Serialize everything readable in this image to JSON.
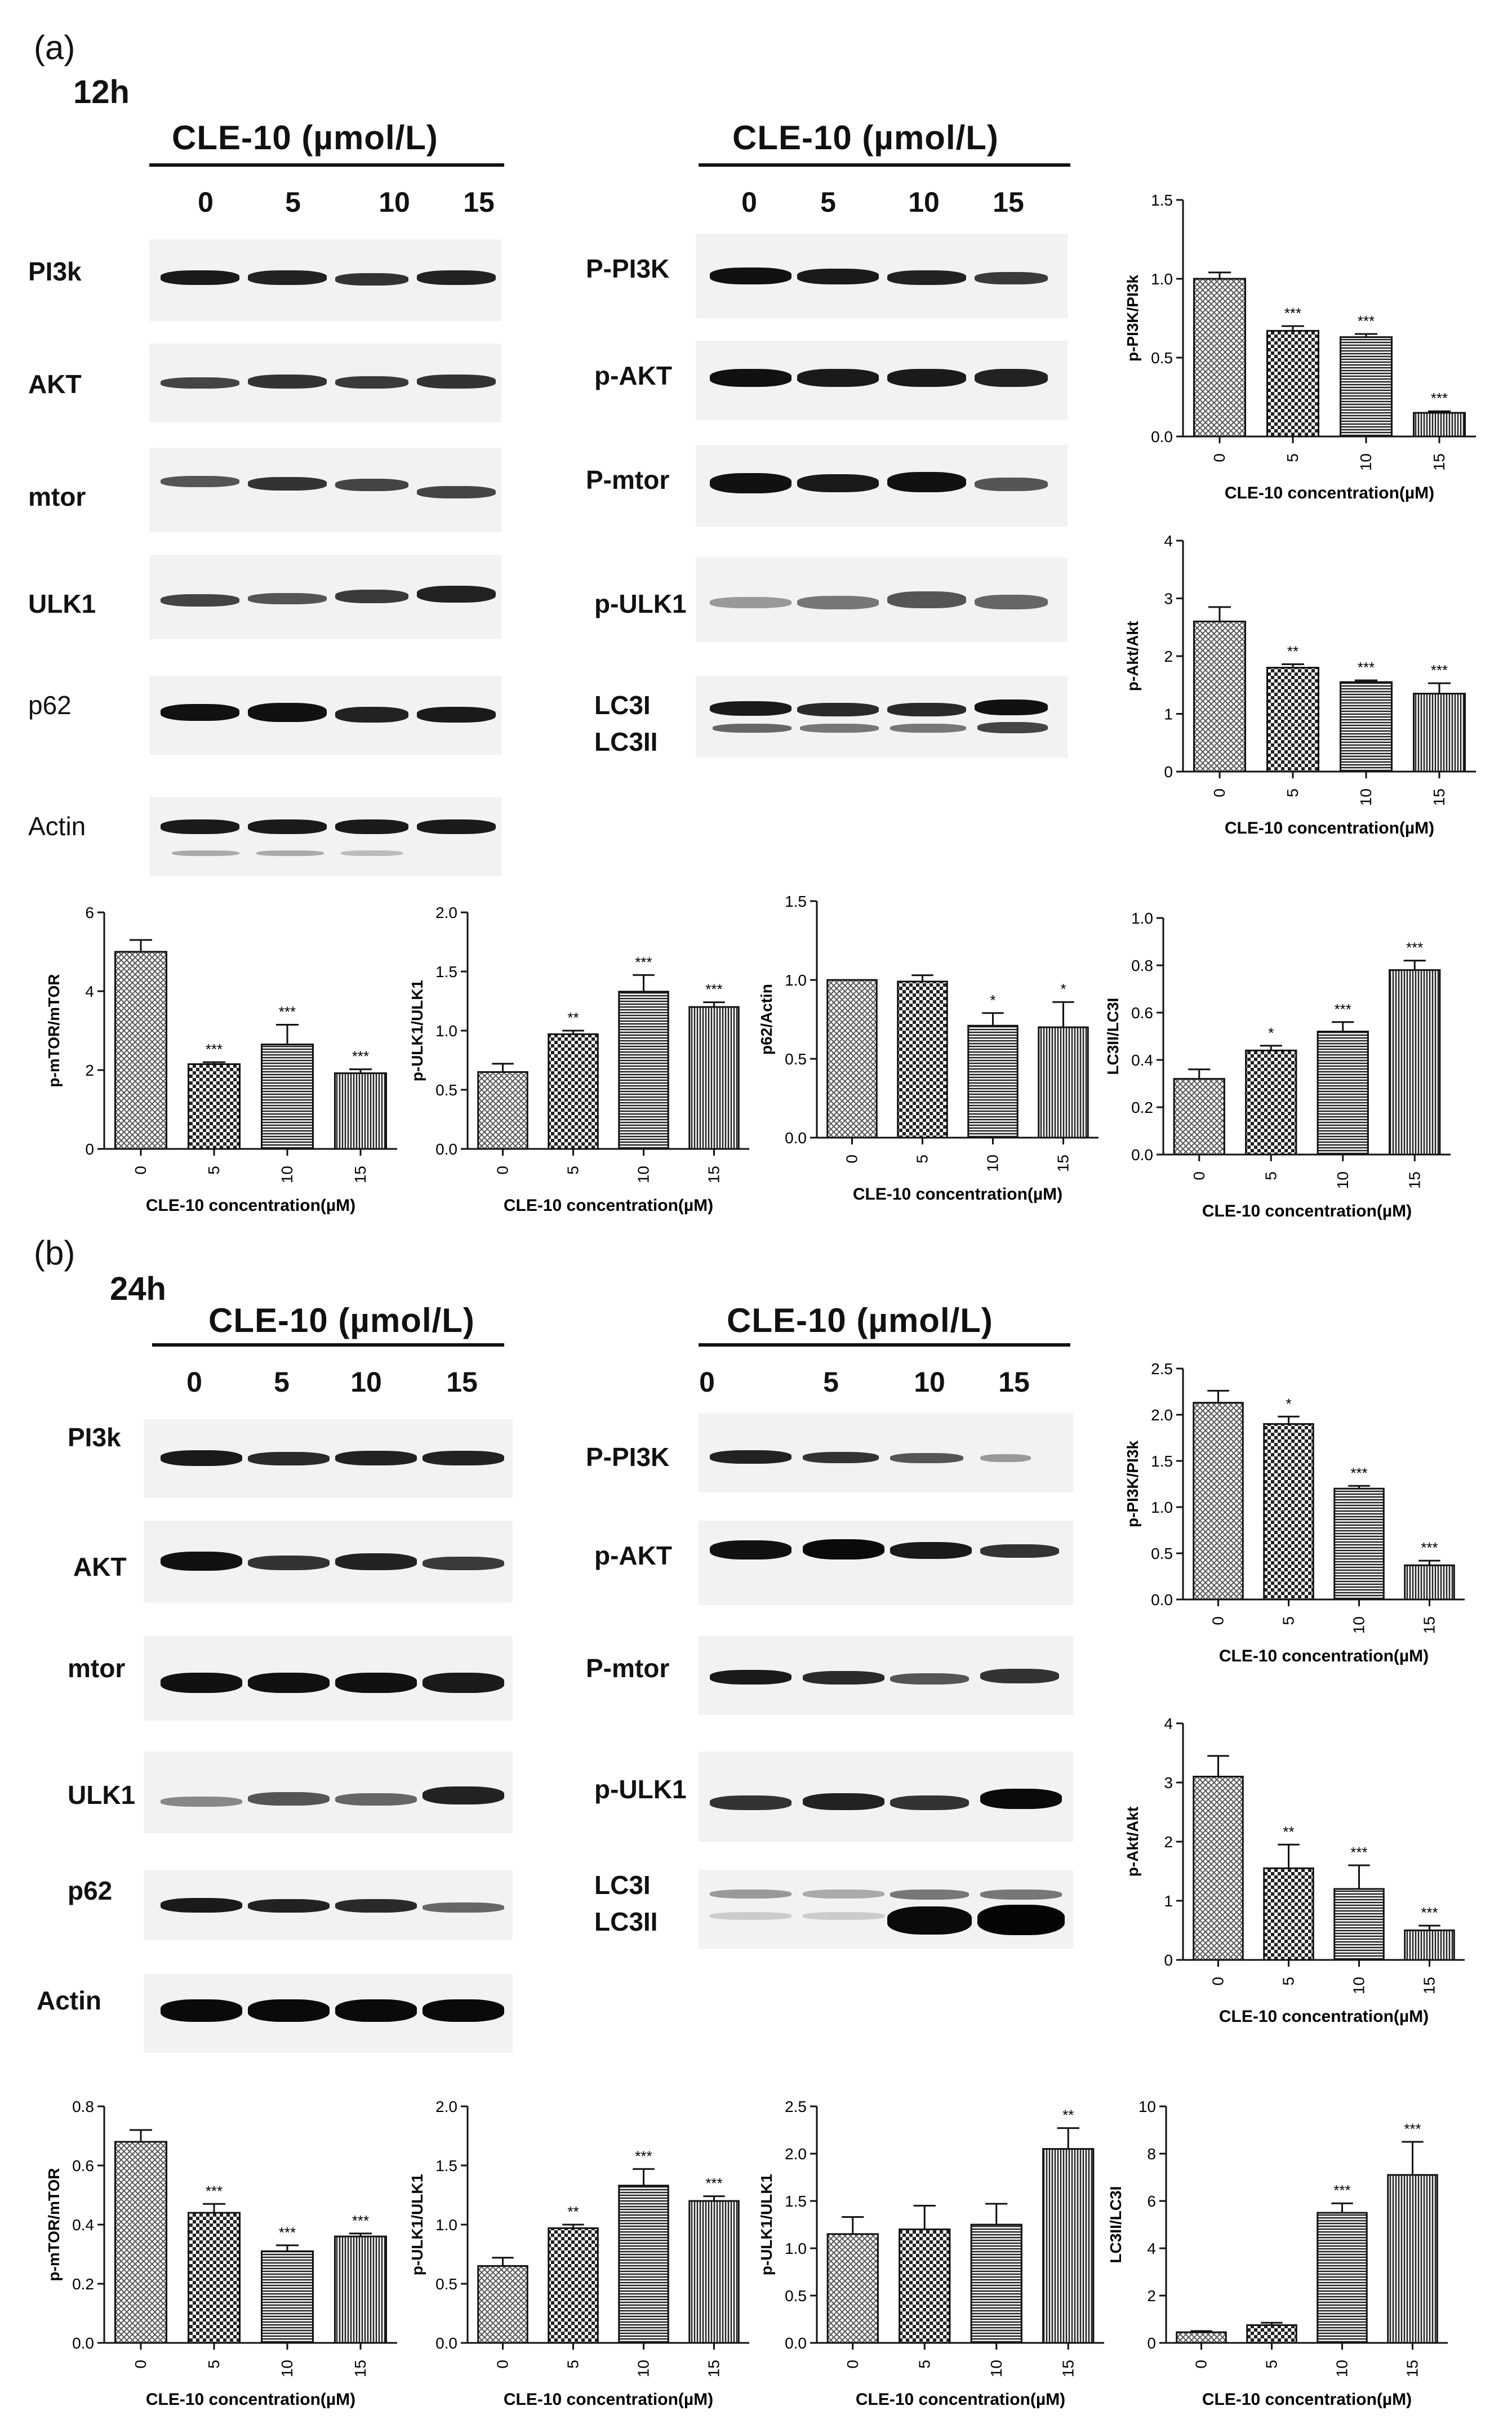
{
  "panels": [
    {
      "letter": "(a)",
      "time": "12h",
      "header": "CLE-10  (µmol/L)",
      "lanes_left": [
        "0",
        "5",
        "10",
        "15"
      ],
      "lanes_right": [
        "0",
        "5",
        "10",
        "15"
      ],
      "left_labels": [
        "PI3k",
        "AKT",
        "mtor",
        "ULK1",
        "p62",
        "Actin"
      ],
      "right_labels": [
        "P-PI3K",
        "p-AKT",
        "P-mtor",
        "p-ULK1",
        "LC3I",
        "LC3II"
      ]
    },
    {
      "letter": "(b)",
      "time": "24h",
      "header": "CLE-10 (µmol/L)",
      "header_right": "CLE-10  (µmol/L)",
      "lanes_left": [
        "0",
        "5",
        "10",
        "15"
      ],
      "lanes_right": [
        "0",
        "5",
        "10",
        "15"
      ],
      "left_labels": [
        "PI3k",
        "AKT",
        "mtor",
        "ULK1",
        "p62",
        "Actin"
      ],
      "right_labels": [
        "P-PI3K",
        "p-AKT",
        "P-mtor",
        "p-ULK1",
        "LC3I",
        "LC3II"
      ]
    }
  ],
  "chart_data": [
    {
      "id": "a1",
      "type": "bar",
      "categories": [
        "0",
        "5",
        "10",
        "15"
      ],
      "values": [
        1.0,
        0.67,
        0.63,
        0.15
      ],
      "errors": [
        0.04,
        0.03,
        0.02,
        0.01
      ],
      "sig": [
        "",
        "***",
        "***",
        "***"
      ],
      "ylabel": "p-PI3K/PI3k",
      "xlabel": "CLE-10 concentration(µM)",
      "ylim": [
        0,
        1.5
      ],
      "ticks": [
        "0.0",
        "0.5",
        "1.0",
        "1.5"
      ]
    },
    {
      "id": "a2",
      "type": "bar",
      "categories": [
        "0",
        "5",
        "10",
        "15"
      ],
      "values": [
        2.6,
        1.8,
        1.55,
        1.35
      ],
      "errors": [
        0.25,
        0.06,
        0.03,
        0.18
      ],
      "sig": [
        "",
        "**",
        "***",
        "***"
      ],
      "ylabel": "p-Akt/Akt",
      "xlabel": "CLE-10 concentration(µM)",
      "ylim": [
        0,
        4
      ],
      "ticks": [
        "0",
        "1",
        "2",
        "3",
        "4"
      ]
    },
    {
      "id": "a3",
      "type": "bar",
      "categories": [
        "0",
        "5",
        "10",
        "15"
      ],
      "values": [
        5.0,
        2.15,
        2.65,
        1.92
      ],
      "errors": [
        0.3,
        0.05,
        0.5,
        0.1
      ],
      "sig": [
        "",
        "***",
        "***",
        "***"
      ],
      "ylabel": "p-mTOR/mTOR",
      "xlabel": "CLE-10 concentration(µM)",
      "ylim": [
        0,
        6
      ],
      "ticks": [
        "0",
        "2",
        "4",
        "6"
      ]
    },
    {
      "id": "a4",
      "type": "bar",
      "categories": [
        "0",
        "5",
        "10",
        "15"
      ],
      "values": [
        0.65,
        0.97,
        1.33,
        1.2
      ],
      "errors": [
        0.07,
        0.03,
        0.14,
        0.04
      ],
      "sig": [
        "",
        "**",
        "***",
        "***"
      ],
      "ylabel": "p-ULK1/ULK1",
      "xlabel": "CLE-10 concentration(µM)",
      "ylim": [
        0,
        2.0
      ],
      "ticks": [
        "0.0",
        "0.5",
        "1.0",
        "1.5",
        "2.0"
      ]
    },
    {
      "id": "a5",
      "type": "bar",
      "categories": [
        "0",
        "5",
        "10",
        "15"
      ],
      "values": [
        1.0,
        0.99,
        0.71,
        0.7
      ],
      "errors": [
        0.0,
        0.04,
        0.08,
        0.16
      ],
      "sig": [
        "",
        "",
        "*",
        "*"
      ],
      "ylabel": "p62/Actin",
      "xlabel": "CLE-10 concentration(µM)",
      "ylim": [
        0,
        1.5
      ],
      "ticks": [
        "0.0",
        "0.5",
        "1.0",
        "1.5"
      ]
    },
    {
      "id": "a6",
      "type": "bar",
      "categories": [
        "0",
        "5",
        "10",
        "15"
      ],
      "values": [
        0.32,
        0.44,
        0.52,
        0.78
      ],
      "errors": [
        0.04,
        0.02,
        0.04,
        0.04
      ],
      "sig": [
        "",
        "*",
        "***",
        "***"
      ],
      "ylabel": "LC3II/LC3I",
      "xlabel": "CLE-10 concentration(µM)",
      "ylim": [
        0,
        1.0
      ],
      "ticks": [
        "0.0",
        "0.2",
        "0.4",
        "0.6",
        "0.8",
        "1.0"
      ]
    },
    {
      "id": "b1",
      "type": "bar",
      "categories": [
        "0",
        "5",
        "10",
        "15"
      ],
      "values": [
        2.13,
        1.9,
        1.2,
        0.37
      ],
      "errors": [
        0.13,
        0.08,
        0.03,
        0.05
      ],
      "sig": [
        "",
        "*",
        "***",
        "***"
      ],
      "ylabel": "p-PI3K/PI3k",
      "xlabel": "CLE-10 concentration(µM)",
      "ylim": [
        0,
        2.5
      ],
      "ticks": [
        "0.0",
        "0.5",
        "1.0",
        "1.5",
        "2.0",
        "2.5"
      ]
    },
    {
      "id": "b2",
      "type": "bar",
      "categories": [
        "0",
        "5",
        "10",
        "15"
      ],
      "values": [
        3.1,
        1.55,
        1.2,
        0.5
      ],
      "errors": [
        0.35,
        0.4,
        0.4,
        0.08
      ],
      "sig": [
        "",
        "**",
        "***",
        "***"
      ],
      "ylabel": "p-Akt/Akt",
      "xlabel": "CLE-10 concentration(µM)",
      "ylim": [
        0,
        4
      ],
      "ticks": [
        "0",
        "1",
        "2",
        "3",
        "4"
      ]
    },
    {
      "id": "b3",
      "type": "bar",
      "categories": [
        "0",
        "5",
        "10",
        "15"
      ],
      "values": [
        0.68,
        0.44,
        0.31,
        0.36
      ],
      "errors": [
        0.04,
        0.03,
        0.02,
        0.01
      ],
      "sig": [
        "",
        "***",
        "***",
        "***"
      ],
      "ylabel": "p-mTOR/mTOR",
      "xlabel": "CLE-10 concentration(µM)",
      "ylim": [
        0,
        0.8
      ],
      "ticks": [
        "0.0",
        "0.2",
        "0.4",
        "0.6",
        "0.8"
      ]
    },
    {
      "id": "b4",
      "type": "bar",
      "categories": [
        "0",
        "5",
        "10",
        "15"
      ],
      "values": [
        0.65,
        0.97,
        1.33,
        1.2
      ],
      "errors": [
        0.07,
        0.03,
        0.14,
        0.04
      ],
      "sig": [
        "",
        "**",
        "***",
        "***"
      ],
      "ylabel": "p-ULK1/ULK1",
      "xlabel": "CLE-10 concentration(µM)",
      "ylim": [
        0,
        2.0
      ],
      "ticks": [
        "0.0",
        "0.5",
        "1.0",
        "1.5",
        "2.0"
      ]
    },
    {
      "id": "b5",
      "type": "bar",
      "categories": [
        "0",
        "5",
        "10",
        "15"
      ],
      "values": [
        1.15,
        1.2,
        1.25,
        2.05
      ],
      "errors": [
        0.18,
        0.25,
        0.22,
        0.22
      ],
      "sig": [
        "",
        "",
        "",
        "**"
      ],
      "ylabel": "p-ULK1/ULK1",
      "xlabel": "CLE-10 concentration(µM)",
      "ylim": [
        0,
        2.5
      ],
      "ticks": [
        "0.0",
        "0.5",
        "1.0",
        "1.5",
        "2.0",
        "2.5"
      ]
    },
    {
      "id": "b6",
      "type": "bar",
      "categories": [
        "0",
        "5",
        "10",
        "15"
      ],
      "values": [
        0.45,
        0.75,
        5.5,
        7.1
      ],
      "errors": [
        0.05,
        0.1,
        0.4,
        1.4
      ],
      "sig": [
        "",
        "",
        "***",
        "***"
      ],
      "ylabel": "LC3II/LC3I",
      "xlabel": "CLE-10 concentration(µM)",
      "ylim": [
        0,
        10
      ],
      "ticks": [
        "0",
        "2",
        "4",
        "6",
        "8",
        "10"
      ]
    }
  ]
}
